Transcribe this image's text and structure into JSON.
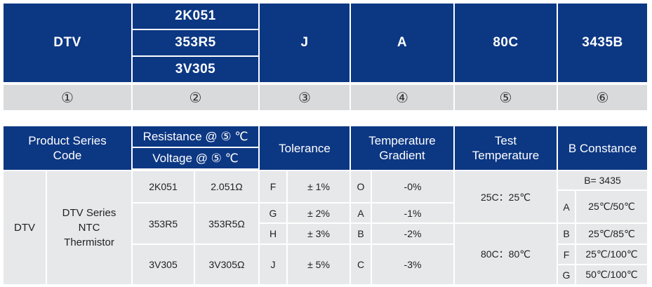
{
  "code_header": {
    "cells": [
      "DTV",
      "J",
      "A",
      "80C",
      "3435B"
    ],
    "stack": [
      "2K051",
      "353R5",
      "3V305"
    ]
  },
  "markers": [
    "①",
    "②",
    "③",
    "④",
    "⑤",
    "⑥"
  ],
  "table_header": {
    "product_code": "Product Series Code",
    "resistance": "Resistance @ ⑤ ℃",
    "voltage": "Voltage @ ⑤ ℃",
    "tolerance": "Tolerance",
    "gradient": "Temperature Gradient",
    "test_temp": "Test Temperature",
    "b_constance": "B Constance"
  },
  "product": {
    "code": "DTV",
    "description": "DTV Series NTC Thermistor"
  },
  "rows": [
    {
      "code": "2K051",
      "value": "2.051Ω",
      "tol_code": "F",
      "tol_value": "± 1%",
      "grad_code": "O",
      "grad_value": "-0%"
    },
    {
      "code": "353R5",
      "value": "353R5Ω",
      "tol_code": "G",
      "tol_value": "± 2%",
      "grad_code": "A",
      "grad_value": "-1%"
    },
    {
      "tol_code": "H",
      "tol_value": "± 3%",
      "grad_code": "B",
      "grad_value": "-2%"
    },
    {
      "code": "3V305",
      "value": "3V305Ω",
      "tol_code": "J",
      "tol_value": "± 5%",
      "grad_code": "C",
      "grad_value": "-3%"
    }
  ],
  "test_temps": [
    "25C：25℃",
    "80C：80℃"
  ],
  "b_constance": {
    "title": "B= 3435",
    "items": [
      {
        "code": "A",
        "value": "25℃/50℃"
      },
      {
        "code": "B",
        "value": "25℃/85℃"
      },
      {
        "code": "F",
        "value": "25℃/100℃"
      },
      {
        "code": "G",
        "value": "50℃/100℃"
      }
    ]
  },
  "colors": {
    "header_navy": "#0c3783",
    "marker_gray": "#d9dadb",
    "body_gray": "#e7e8e9",
    "text": "#222222"
  }
}
